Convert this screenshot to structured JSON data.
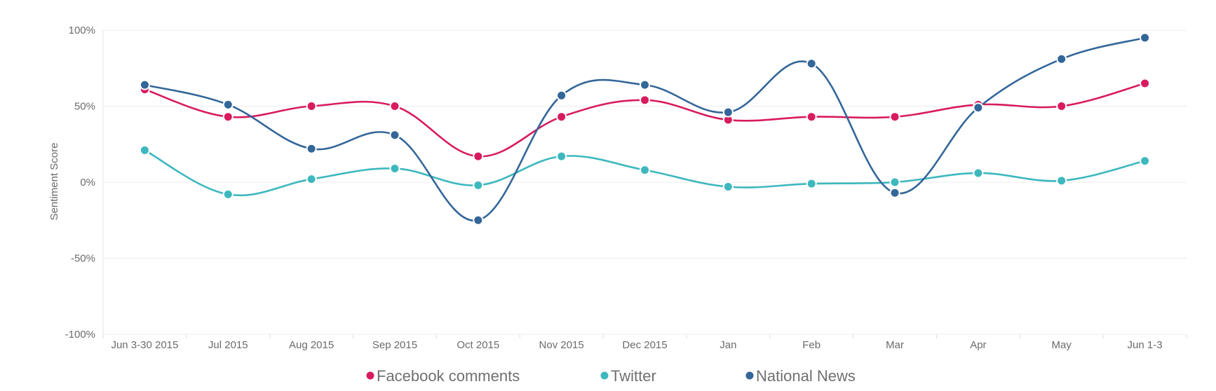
{
  "chart_data": {
    "type": "line",
    "ylabel": "Sentiment Score",
    "ylim": [
      -100,
      100
    ],
    "yticks": [
      100,
      50,
      0,
      -50,
      -100
    ],
    "ytick_labels": [
      "100%",
      "50%",
      "0%",
      "-50%",
      "-100%"
    ],
    "categories": [
      "Jun 3-30 2015",
      "Jul 2015",
      "Aug 2015",
      "Sep 2015",
      "Oct 2015",
      "Nov 2015",
      "Dec 2015",
      "Jan",
      "Feb",
      "Mar",
      "Apr",
      "May",
      "Jun 1-3"
    ],
    "grid": true,
    "legend_position": "bottom-center",
    "series": [
      {
        "name": "Facebook comments",
        "color": "#d81b5f",
        "values": [
          61,
          43,
          50,
          50,
          17,
          43,
          54,
          41,
          43,
          43,
          51,
          50,
          65
        ]
      },
      {
        "name": "Twitter",
        "color": "#3db8be",
        "values": [
          21,
          -8,
          2,
          9,
          -2,
          17,
          8,
          -3,
          -1,
          0,
          6,
          1,
          14
        ]
      },
      {
        "name": "National News",
        "color": "#336699",
        "values": [
          64,
          51,
          22,
          31,
          -25,
          57,
          64,
          46,
          78,
          -7,
          49,
          81,
          95
        ]
      }
    ]
  }
}
